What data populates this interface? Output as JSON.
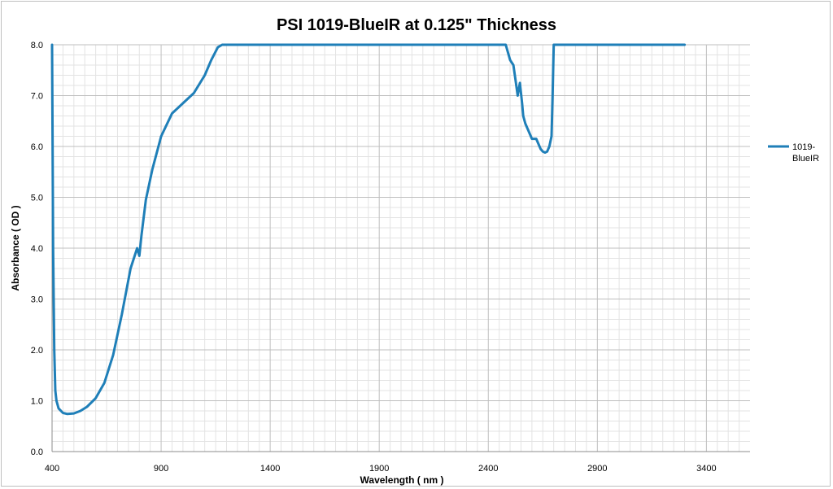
{
  "chart_data": {
    "type": "line",
    "title": "PSI  1019-BlueIR at 0.125\" Thickness",
    "xlabel": "Wavelength  ( nm )",
    "ylabel": "Absorbance  ( OD )",
    "xlim": [
      400,
      3600
    ],
    "ylim": [
      0,
      8
    ],
    "x_ticks": [
      "400",
      "900",
      "1400",
      "1900",
      "2400",
      "2900",
      "3400"
    ],
    "y_ticks": [
      "0.0",
      "1.0",
      "2.0",
      "3.0",
      "4.0",
      "5.0",
      "6.0",
      "7.0",
      "8.0"
    ],
    "grid": true,
    "legend_position": "right",
    "colors": {
      "series": "#1f7fb8",
      "grid_major": "#bfbfbf",
      "grid_minor": "#e3e3e3",
      "axis": "#8c8c8c"
    },
    "series": [
      {
        "name": "1019-BlueIR",
        "legend_label_lines": [
          "1019-",
          "BlueIR"
        ],
        "x": [
          400,
          402,
          405,
          410,
          415,
          420,
          430,
          450,
          470,
          500,
          530,
          560,
          600,
          640,
          680,
          720,
          760,
          790,
          800,
          805,
          810,
          830,
          860,
          900,
          950,
          1000,
          1050,
          1100,
          1130,
          1160,
          1180,
          1200,
          1500,
          2000,
          2440,
          2480,
          2500,
          2515,
          2525,
          2535,
          2545,
          2555,
          2560,
          2570,
          2580,
          2600,
          2620,
          2630,
          2640,
          2650,
          2660,
          2670,
          2680,
          2690,
          2695,
          2700,
          2710,
          2720,
          3300
        ],
        "y": [
          8.0,
          6.5,
          4.0,
          2.0,
          1.2,
          1.0,
          0.85,
          0.76,
          0.74,
          0.75,
          0.8,
          0.88,
          1.05,
          1.35,
          1.9,
          2.7,
          3.6,
          4.0,
          3.85,
          4.05,
          4.25,
          4.95,
          5.55,
          6.2,
          6.65,
          6.85,
          7.05,
          7.4,
          7.7,
          7.95,
          8.0,
          8.0,
          8.0,
          8.0,
          8.0,
          8.0,
          7.7,
          7.6,
          7.3,
          7.0,
          7.25,
          6.85,
          6.6,
          6.45,
          6.35,
          6.15,
          6.15,
          6.05,
          5.95,
          5.9,
          5.88,
          5.9,
          6.0,
          6.2,
          7.0,
          8.0,
          8.0,
          8.0,
          8.0
        ]
      }
    ]
  }
}
